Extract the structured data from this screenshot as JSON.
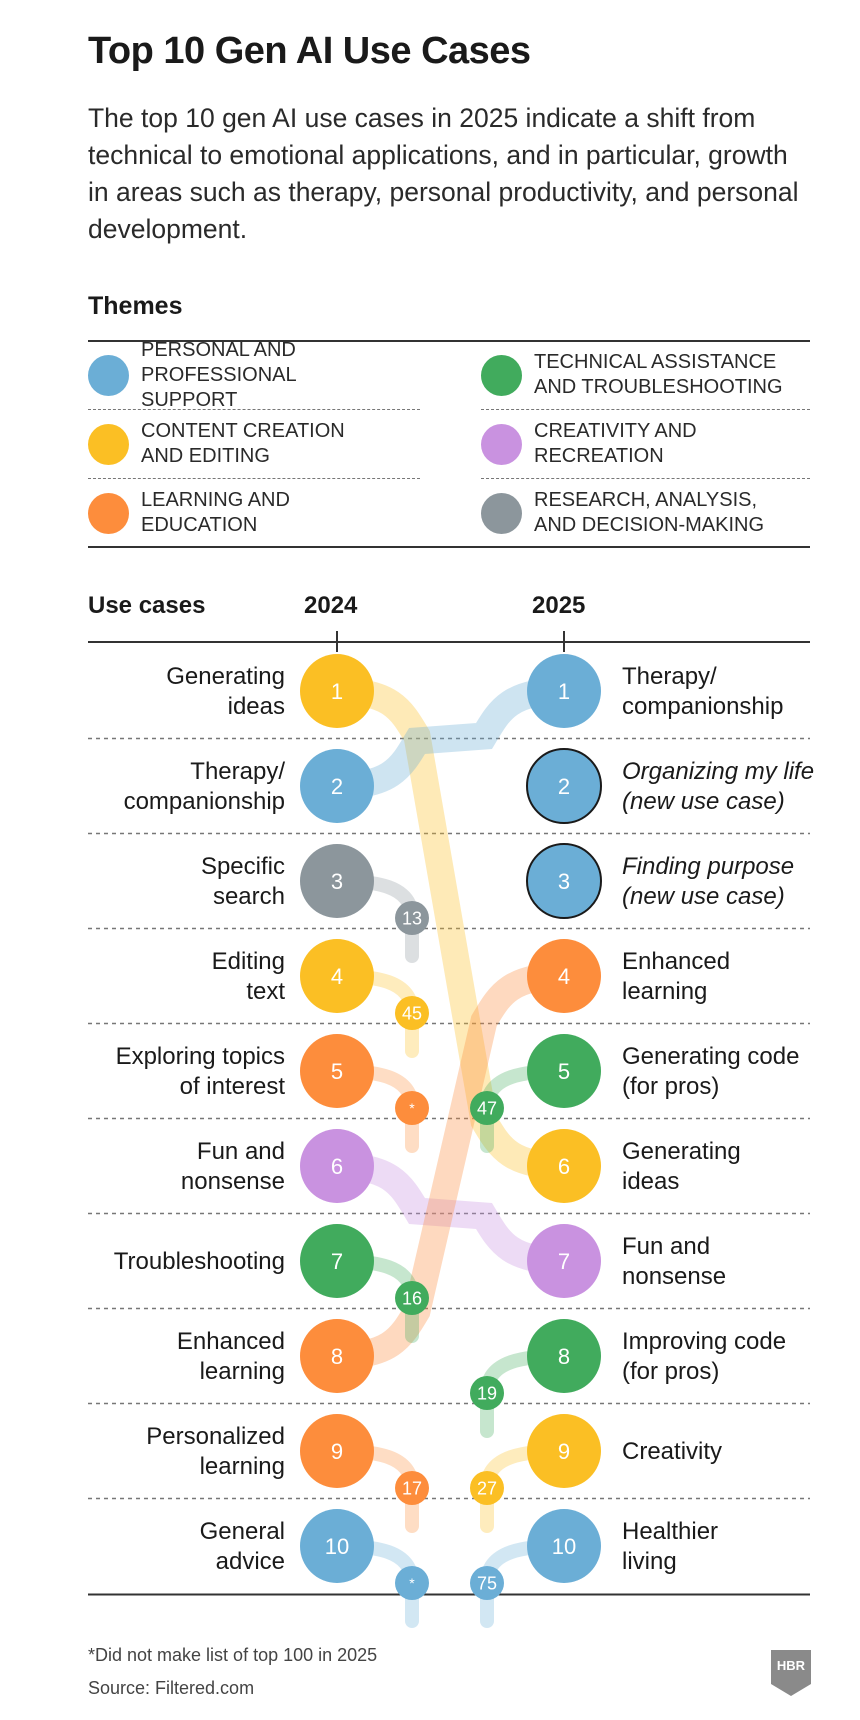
{
  "title": "Top 10 Gen AI Use Cases",
  "subtitle": "The top 10 gen AI use cases in 2025 indicate a shift from technical to emotional applications, and in particular, growth in areas such as therapy, personal productivity, and personal development.",
  "themes_heading": "Themes",
  "themes": [
    {
      "key": "support",
      "label": "Personal and professional support",
      "color": "#6baed6"
    },
    {
      "key": "technical",
      "label": "Technical assistance and troubleshooting",
      "color": "#41ab5d"
    },
    {
      "key": "content",
      "label": "Content creation and editing",
      "color": "#fbbf24"
    },
    {
      "key": "creativity",
      "label": "Creativity and recreation",
      "color": "#c992e0"
    },
    {
      "key": "learning",
      "label": "Learning and education",
      "color": "#fd8d3c"
    },
    {
      "key": "research",
      "label": "Research, analysis, and decision-making",
      "color": "#8c969c"
    }
  ],
  "chart_data": {
    "type": "table",
    "column_headers": {
      "label": "Use cases",
      "left": "2024",
      "right": "2025"
    },
    "left": [
      {
        "rank": 1,
        "label": "Generating ideas",
        "lines": [
          "Generating",
          "ideas"
        ],
        "theme": "content",
        "rank_2025": "6"
      },
      {
        "rank": 2,
        "label": "Therapy/ companionship",
        "lines": [
          "Therapy/",
          "companionship"
        ],
        "theme": "support",
        "rank_2025": "1"
      },
      {
        "rank": 3,
        "label": "Specific search",
        "lines": [
          "Specific",
          "search"
        ],
        "theme": "research",
        "rank_2025": "13"
      },
      {
        "rank": 4,
        "label": "Editing text",
        "lines": [
          "Editing",
          "text"
        ],
        "theme": "content",
        "rank_2025": "45"
      },
      {
        "rank": 5,
        "label": "Exploring topics of interest",
        "lines": [
          "Exploring topics",
          "of interest"
        ],
        "theme": "learning",
        "rank_2025": "*"
      },
      {
        "rank": 6,
        "label": "Fun and nonsense",
        "lines": [
          "Fun and",
          "nonsense"
        ],
        "theme": "creativity",
        "rank_2025": "7"
      },
      {
        "rank": 7,
        "label": "Troubleshooting",
        "lines": [
          "Troubleshooting"
        ],
        "theme": "technical",
        "rank_2025": "16"
      },
      {
        "rank": 8,
        "label": "Enhanced learning",
        "lines": [
          "Enhanced",
          "learning"
        ],
        "theme": "learning",
        "rank_2025": "4"
      },
      {
        "rank": 9,
        "label": "Personalized learning",
        "lines": [
          "Personalized",
          "learning"
        ],
        "theme": "learning",
        "rank_2025": "17"
      },
      {
        "rank": 10,
        "label": "General advice",
        "lines": [
          "General",
          "advice"
        ],
        "theme": "support",
        "rank_2025": "*"
      }
    ],
    "right": [
      {
        "rank": 1,
        "label": "Therapy/ companionship",
        "lines": [
          "Therapy/",
          "companionship"
        ],
        "theme": "support",
        "new": false,
        "rank_2024": "2"
      },
      {
        "rank": 2,
        "label": "Organizing my life (new use case)",
        "lines": [
          "Organizing my life",
          "(new use case)"
        ],
        "theme": "support",
        "new": true,
        "rank_2024": null
      },
      {
        "rank": 3,
        "label": "Finding purpose (new use case)",
        "lines": [
          "Finding purpose",
          "(new use case)"
        ],
        "theme": "support",
        "new": true,
        "rank_2024": null
      },
      {
        "rank": 4,
        "label": "Enhanced learning",
        "lines": [
          "Enhanced",
          "learning"
        ],
        "theme": "learning",
        "new": false,
        "rank_2024": "8"
      },
      {
        "rank": 5,
        "label": "Generating code (for pros)",
        "lines": [
          "Generating code",
          "(for pros)"
        ],
        "theme": "technical",
        "new": false,
        "rank_2024": "47"
      },
      {
        "rank": 6,
        "label": "Generating ideas",
        "lines": [
          "Generating",
          "ideas"
        ],
        "theme": "content",
        "new": false,
        "rank_2024": "1"
      },
      {
        "rank": 7,
        "label": "Fun and nonsense",
        "lines": [
          "Fun and",
          "nonsense"
        ],
        "theme": "creativity",
        "new": false,
        "rank_2024": "6"
      },
      {
        "rank": 8,
        "label": "Improving code (for pros)",
        "lines": [
          "Improving code",
          "(for pros)"
        ],
        "theme": "technical",
        "new": false,
        "rank_2024": "19"
      },
      {
        "rank": 9,
        "label": "Creativity",
        "lines": [
          "Creativity"
        ],
        "theme": "content",
        "new": false,
        "rank_2024": "27"
      },
      {
        "rank": 10,
        "label": "Healthier living",
        "lines": [
          "Healthier",
          "living"
        ],
        "theme": "support",
        "new": false,
        "rank_2024": "75"
      }
    ]
  },
  "footnote": "*Did not make list of top 100 in 2025",
  "source": "Source: Filtered.com",
  "logo_text": "HBR"
}
